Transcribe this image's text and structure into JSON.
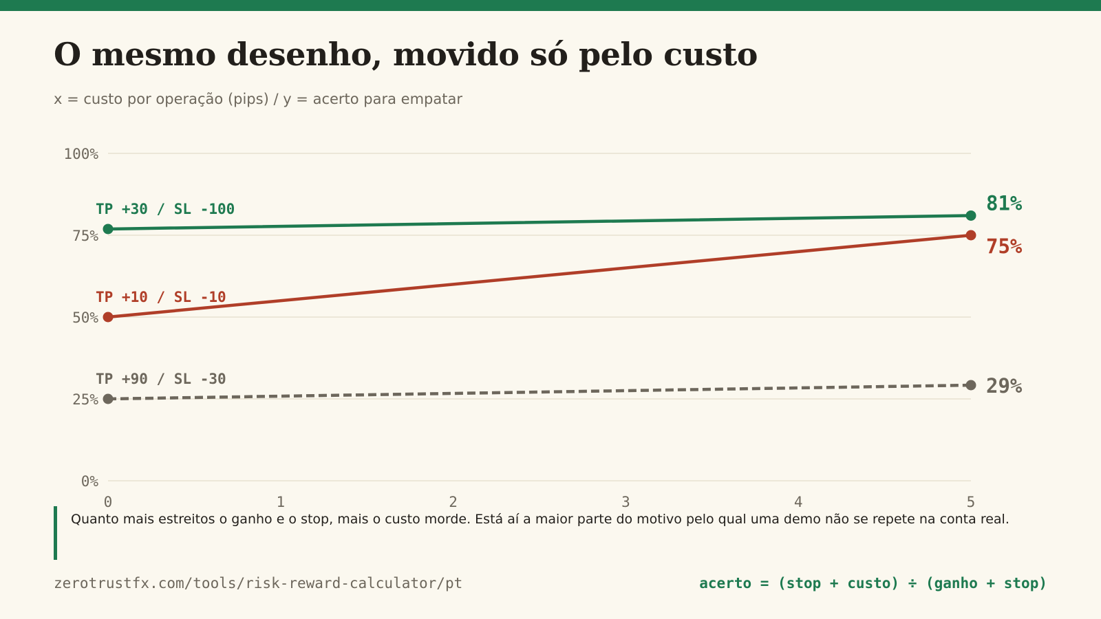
{
  "header": {
    "title": "O mesmo desenho, movido só pelo custo",
    "subtitle": "x = custo por operação (pips) / y = acerto para empatar"
  },
  "chart_data": {
    "type": "line",
    "title": "O mesmo desenho, movido só pelo custo",
    "subtitle": "x = custo por operação (pips) / y = acerto para empatar",
    "xlabel": "",
    "ylabel": "",
    "x": [
      0,
      5
    ],
    "xticks": [
      "0",
      "1",
      "2",
      "3",
      "4",
      "5"
    ],
    "xlim": [
      0,
      5
    ],
    "yticks": [
      "0%",
      "25%",
      "50%",
      "75%",
      "100%"
    ],
    "ylim": [
      0,
      100
    ],
    "grid": true,
    "legend": "inline labels",
    "series": [
      {
        "name": "TP +30 / SL -100",
        "values": [
          76.9,
          81
        ],
        "end_label": "81%",
        "color": "#1e7a50",
        "style": "solid"
      },
      {
        "name": "TP +10 / SL -10",
        "values": [
          50,
          75
        ],
        "end_label": "75%",
        "color": "#b03e28",
        "style": "solid"
      },
      {
        "name": "TP +90 / SL -30",
        "values": [
          25,
          29.2
        ],
        "end_label": "29%",
        "color": "#6d675c",
        "style": "dashed"
      }
    ]
  },
  "note": {
    "text": "Quanto mais estreitos o ganho e o stop, mais o custo morde. Está aí a maior parte do motivo pelo qual uma demo não se repete na conta real."
  },
  "footer": {
    "url": "zerotrustfx.com/tools/risk-reward-calculator/pt",
    "formula": "acerto = (stop + custo) ÷ (ganho + stop)"
  },
  "colors": {
    "accent": "#1e7a50",
    "red": "#b03e28",
    "gray": "#6d675c",
    "background": "#fbf8ef",
    "grid": "#ddd6c0"
  }
}
